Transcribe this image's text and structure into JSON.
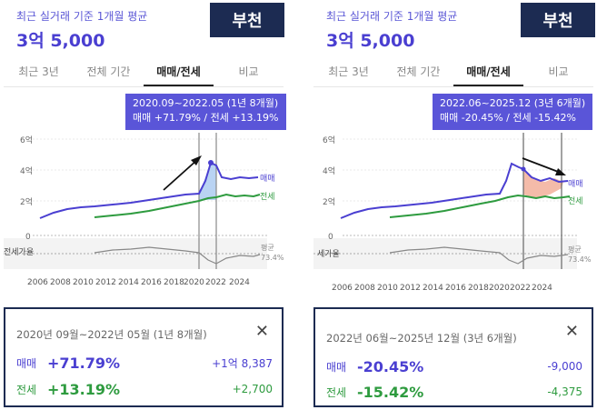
{
  "colors": {
    "buy": "#4a3fd1",
    "jeonse": "#2e9b3f",
    "navy": "#1c2b52",
    "tooltip": "#5a55d8"
  },
  "panels": [
    {
      "avg_label": "최근 실거래 기준 1개월 평균",
      "price": "3억 5,000",
      "city": "부천",
      "tabs": [
        "최근 3년",
        "전체 기간",
        "매매/전세",
        "비교"
      ],
      "active_tab": 2,
      "tooltip": {
        "line1": "2020.09~2022.05 (1년 8개월)",
        "line2": "매매 +71.79%  /  전세 +13.19%"
      },
      "chart": {
        "y_ticks": [
          "6억",
          "4억",
          "2억",
          "0"
        ],
        "x_ticks": [
          "2006",
          "2008",
          "2010",
          "2012",
          "2014",
          "2016",
          "2018",
          "2020",
          "2022",
          "2024"
        ],
        "series_buy_label": "매매",
        "series_jeonse_label": "전세",
        "ratio_label": "전세가율",
        "ratio_avg_label": "평균",
        "ratio_avg_value": "73.4%"
      },
      "summary": {
        "period": "2020년 09월~2022년 05월 (1년 8개월)",
        "close_icon": "close-icon",
        "buy_label": "매매",
        "buy_pct": "+71.79%",
        "buy_amt": "+1억 8,387",
        "jeonse_label": "전세",
        "jeonse_pct": "+13.19%",
        "jeonse_amt": "+2,700"
      }
    },
    {
      "avg_label": "최근 실거래 기준 1개월 평균",
      "price": "3억 5,000",
      "city": "부천",
      "tabs": [
        "최근 3년",
        "전체 기간",
        "매매/전세",
        "비교"
      ],
      "active_tab": 2,
      "tooltip": {
        "line1": "2022.06~2025.12 (3년 6개월)",
        "line2": "매매 -20.45%  /  전세 -15.42%"
      },
      "chart": {
        "y_ticks": [
          "6억",
          "4억",
          "2억",
          "0"
        ],
        "x_ticks": [
          "2006",
          "2008",
          "2010",
          "2012",
          "2014",
          "2016",
          "2018",
          "2020",
          "2022",
          "2024"
        ],
        "series_buy_label": "매매",
        "series_jeonse_label": "전세",
        "ratio_label": "세가율",
        "ratio_avg_label": "평균",
        "ratio_avg_value": "73.4%"
      },
      "summary": {
        "period": "2022년 06월~2025년 12월 (3년 6개월)",
        "close_icon": "close-icon",
        "buy_label": "매매",
        "buy_pct": "-20.45%",
        "buy_amt": "-9,000",
        "jeonse_label": "전세",
        "jeonse_pct": "-15.42%",
        "jeonse_amt": "-4,375"
      }
    }
  ]
}
